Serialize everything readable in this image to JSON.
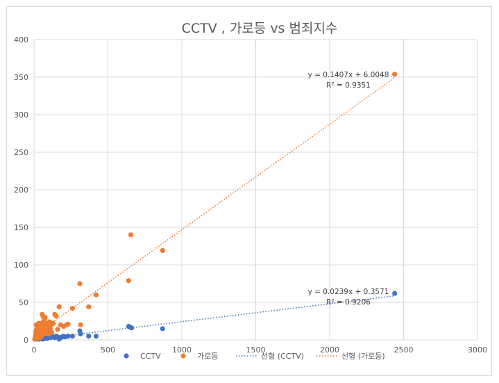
{
  "chart_data": {
    "type": "scatter",
    "title": "CCTV , 가로등 vs 범죄지수",
    "xlabel": "",
    "ylabel": "",
    "xlim": [
      0,
      3000
    ],
    "ylim": [
      0,
      400
    ],
    "x_ticks": [
      0,
      500,
      1000,
      1500,
      2000,
      2500,
      3000
    ],
    "y_ticks": [
      0,
      50,
      100,
      150,
      200,
      250,
      300,
      350,
      400
    ],
    "x_tick_labels": [
      "0",
      "500",
      "1000",
      "1500",
      "2000",
      "2500",
      "3000"
    ],
    "y_tick_labels": [
      "0",
      "50",
      "100",
      "150",
      "200",
      "250",
      "300",
      "350",
      "400"
    ],
    "grid": true,
    "legend_position": "bottom",
    "colors": {
      "CCTV": "#4472c4",
      "가로등": "#ed7d31",
      "grid": "#d9d9d9",
      "text": "#595959"
    },
    "series": [
      {
        "name": "CCTV",
        "color": "#4472c4",
        "points": [
          [
            10,
            1
          ],
          [
            15,
            2
          ],
          [
            20,
            1
          ],
          [
            25,
            3
          ],
          [
            30,
            2
          ],
          [
            35,
            1
          ],
          [
            40,
            2
          ],
          [
            45,
            3
          ],
          [
            50,
            2
          ],
          [
            55,
            4
          ],
          [
            60,
            1
          ],
          [
            65,
            3
          ],
          [
            70,
            2
          ],
          [
            80,
            3
          ],
          [
            90,
            2
          ],
          [
            100,
            4
          ],
          [
            110,
            3
          ],
          [
            120,
            5
          ],
          [
            130,
            4
          ],
          [
            140,
            3
          ],
          [
            150,
            5
          ],
          [
            160,
            4
          ],
          [
            170,
            1
          ],
          [
            180,
            3
          ],
          [
            190,
            4
          ],
          [
            200,
            5
          ],
          [
            210,
            4
          ],
          [
            230,
            5
          ],
          [
            260,
            5
          ],
          [
            310,
            12
          ],
          [
            315,
            8
          ],
          [
            370,
            5
          ],
          [
            420,
            5
          ],
          [
            640,
            18
          ],
          [
            650,
            17
          ],
          [
            660,
            16
          ],
          [
            870,
            15
          ],
          [
            2440,
            62
          ]
        ]
      },
      {
        "name": "가로등",
        "color": "#ed7d31",
        "points": [
          [
            5,
            1
          ],
          [
            8,
            3
          ],
          [
            10,
            6
          ],
          [
            12,
            10
          ],
          [
            15,
            13
          ],
          [
            15,
            20
          ],
          [
            18,
            8
          ],
          [
            20,
            2
          ],
          [
            22,
            15
          ],
          [
            25,
            18
          ],
          [
            28,
            5
          ],
          [
            30,
            22
          ],
          [
            32,
            12
          ],
          [
            35,
            8
          ],
          [
            38,
            20
          ],
          [
            40,
            16
          ],
          [
            42,
            3
          ],
          [
            45,
            18
          ],
          [
            48,
            10
          ],
          [
            50,
            22
          ],
          [
            52,
            14
          ],
          [
            55,
            34
          ],
          [
            58,
            6
          ],
          [
            60,
            20
          ],
          [
            62,
            31
          ],
          [
            65,
            25
          ],
          [
            68,
            12
          ],
          [
            70,
            18
          ],
          [
            72,
            28
          ],
          [
            75,
            30
          ],
          [
            78,
            9
          ],
          [
            80,
            16
          ],
          [
            85,
            22
          ],
          [
            90,
            12
          ],
          [
            95,
            18
          ],
          [
            100,
            8
          ],
          [
            105,
            24
          ],
          [
            110,
            15
          ],
          [
            115,
            20
          ],
          [
            120,
            10
          ],
          [
            130,
            22
          ],
          [
            140,
            34
          ],
          [
            150,
            32
          ],
          [
            160,
            14
          ],
          [
            170,
            44
          ],
          [
            180,
            20
          ],
          [
            200,
            18
          ],
          [
            220,
            20
          ],
          [
            230,
            21
          ],
          [
            260,
            42
          ],
          [
            310,
            75
          ],
          [
            315,
            20
          ],
          [
            370,
            44
          ],
          [
            420,
            60
          ],
          [
            640,
            79
          ],
          [
            655,
            140
          ],
          [
            870,
            119
          ],
          [
            2440,
            354
          ]
        ]
      }
    ],
    "trendlines": [
      {
        "name": "선형 (CCTV)",
        "series": "CCTV",
        "slope": 0.0239,
        "intercept": 0.3571,
        "x_range": [
          0,
          2440
        ],
        "equation": "y = 0.0239x + 0.3571",
        "r2": "R² = 0.9206",
        "color": "#4472c4"
      },
      {
        "name": "선형 (가로등)",
        "series": "가로등",
        "slope": 0.1407,
        "intercept": 6.0048,
        "x_range": [
          0,
          2440
        ],
        "equation": "y = 0.1407x + 6.0048",
        "r2": "R² = 0.9351",
        "color": "#ed7d31"
      }
    ],
    "legend": [
      "CCTV",
      "가로등",
      "선형 (CCTV)",
      "선형 (가로등)"
    ]
  }
}
